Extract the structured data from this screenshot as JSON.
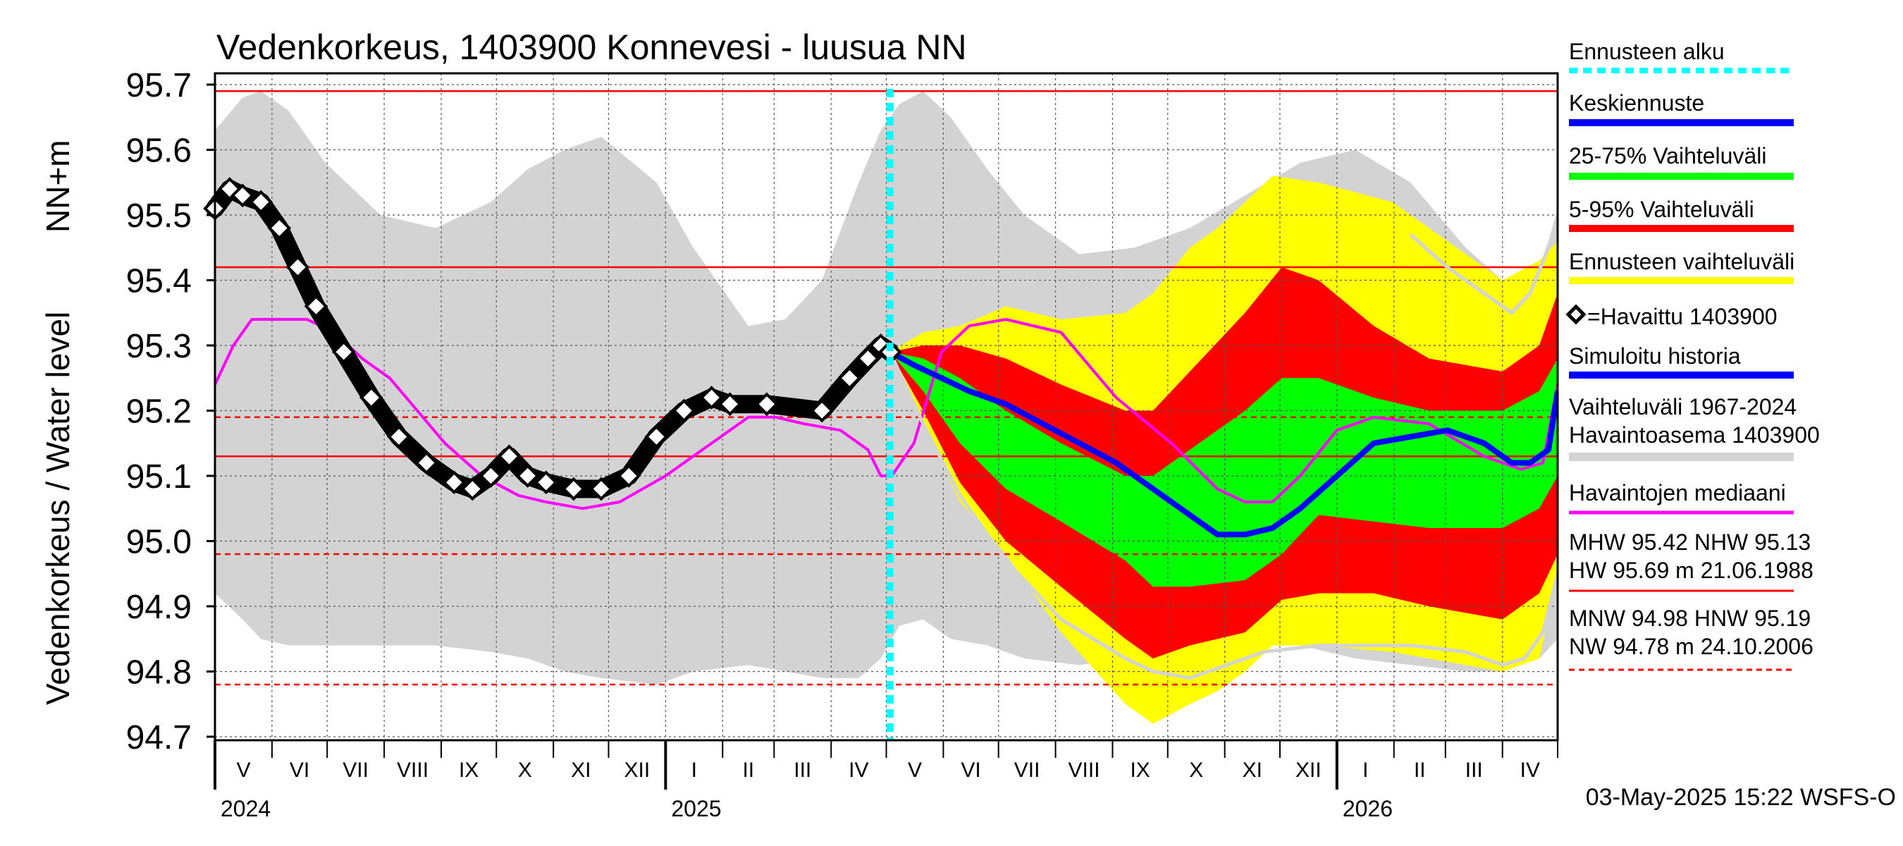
{
  "chart_data": {
    "type": "line",
    "title": "Vedenkorkeus, 1403900 Konnevesi - luusua NN",
    "ylabel": "Vedenkorkeus / Water level",
    "ylabel_unit": "NN+m",
    "ylim": [
      94.7,
      95.7
    ],
    "yticks": [
      "95.7",
      "95.6",
      "95.5",
      "95.4",
      "95.3",
      "95.2",
      "95.1",
      "95.0",
      "94.9",
      "94.8",
      "94.7"
    ],
    "month_labels": [
      "V",
      "VI",
      "VII",
      "VIII",
      "IX",
      "X",
      "XI",
      "XII",
      "I",
      "II",
      "III",
      "IV",
      "V",
      "VI",
      "VII",
      "VIII",
      "IX",
      "X",
      "XI",
      "XII",
      "I",
      "II",
      "III",
      "IV"
    ],
    "year_labels": [
      "2024",
      "2025",
      "2026"
    ],
    "x_start": "2024-05-01",
    "forecast_start": "2025-05-03",
    "reference_lines": [
      {
        "name": "HW",
        "value": 95.69,
        "style": "solid"
      },
      {
        "name": "MHW",
        "value": 95.42,
        "style": "solid"
      },
      {
        "name": "HNW",
        "value": 95.19,
        "style": "dashed"
      },
      {
        "name": "NHW",
        "value": 95.13,
        "style": "solid"
      },
      {
        "name": "MNW",
        "value": 94.98,
        "style": "dashed"
      },
      {
        "name": "NW",
        "value": 94.78,
        "style": "dashed"
      }
    ],
    "series": [
      {
        "name": "Vaihteluväli 1967-2024",
        "kind": "band",
        "color": "#d3d3d3",
        "t": [
          0,
          15,
          25,
          40,
          60,
          90,
          120,
          150,
          170,
          190,
          210,
          240,
          260,
          290,
          310,
          330,
          350,
          362,
          372,
          385,
          400,
          420,
          440,
          470,
          500,
          530,
          560,
          590,
          620,
          650,
          680,
          700,
          720,
          730
        ],
        "lo": [
          94.92,
          94.88,
          94.85,
          94.84,
          94.84,
          94.84,
          94.84,
          94.83,
          94.82,
          94.8,
          94.79,
          94.78,
          94.8,
          94.81,
          94.8,
          94.79,
          94.79,
          94.82,
          94.87,
          94.88,
          94.85,
          94.84,
          94.82,
          94.81,
          94.82,
          94.84,
          94.84,
          94.84,
          94.82,
          94.81,
          94.8,
          94.8,
          94.82,
          94.85
        ],
        "hi": [
          95.63,
          95.68,
          95.69,
          95.66,
          95.58,
          95.5,
          95.48,
          95.52,
          95.57,
          95.6,
          95.62,
          95.55,
          95.45,
          95.33,
          95.34,
          95.4,
          95.55,
          95.63,
          95.67,
          95.69,
          95.65,
          95.57,
          95.5,
          95.44,
          95.45,
          95.48,
          95.53,
          95.58,
          95.6,
          95.55,
          95.45,
          95.4,
          95.42,
          95.5
        ]
      },
      {
        "name": "Ennusteen vaihteluväli",
        "kind": "band",
        "color": "#ffff00",
        "t": [
          367,
          385,
          405,
          430,
          460,
          495,
          510,
          530,
          545,
          560,
          575,
          600,
          640,
          700,
          720,
          730
        ],
        "lo": [
          95.29,
          95.18,
          95.06,
          94.98,
          94.86,
          94.75,
          94.72,
          94.75,
          94.77,
          94.8,
          94.84,
          94.84,
          94.83,
          94.8,
          94.82,
          94.95
        ],
        "hi": [
          95.29,
          95.32,
          95.33,
          95.36,
          95.34,
          95.35,
          95.38,
          95.45,
          95.48,
          95.52,
          95.56,
          95.55,
          95.52,
          95.4,
          95.43,
          95.46
        ]
      },
      {
        "name": "5-95% Vaihteluväli",
        "kind": "band",
        "color": "#ff0000",
        "t": [
          367,
          385,
          405,
          430,
          460,
          495,
          510,
          530,
          560,
          580,
          600,
          630,
          660,
          700,
          720,
          730
        ],
        "lo": [
          95.29,
          95.2,
          95.09,
          95.0,
          94.93,
          94.85,
          94.82,
          94.84,
          94.86,
          94.91,
          94.92,
          94.92,
          94.9,
          94.88,
          94.92,
          94.98
        ],
        "hi": [
          95.29,
          95.3,
          95.3,
          95.28,
          95.24,
          95.2,
          95.2,
          95.26,
          95.35,
          95.42,
          95.4,
          95.33,
          95.28,
          95.26,
          95.3,
          95.38
        ]
      },
      {
        "name": "25-75% Vaihteluväli",
        "kind": "band",
        "color": "#00ff00",
        "t": [
          367,
          385,
          405,
          430,
          460,
          495,
          510,
          530,
          560,
          580,
          600,
          630,
          660,
          700,
          720,
          730
        ],
        "lo": [
          95.29,
          95.23,
          95.15,
          95.08,
          95.03,
          94.97,
          94.93,
          94.93,
          94.94,
          94.98,
          95.04,
          95.03,
          95.02,
          95.02,
          95.05,
          95.1
        ],
        "hi": [
          95.29,
          95.28,
          95.25,
          95.2,
          95.15,
          95.1,
          95.1,
          95.14,
          95.2,
          95.25,
          95.25,
          95.22,
          95.2,
          95.2,
          95.23,
          95.28
        ]
      },
      {
        "name": "Havaintojen mediaani",
        "kind": "line",
        "color": "#ff00ff",
        "t": [
          0,
          10,
          20,
          35,
          50,
          65,
          80,
          95,
          110,
          125,
          145,
          165,
          180,
          200,
          220,
          245,
          270,
          290,
          305,
          320,
          340,
          355,
          362,
          368,
          380,
          395,
          410,
          430,
          460,
          490,
          520,
          545,
          560,
          575,
          590,
          610,
          630,
          660,
          690,
          710,
          722,
          730
        ],
        "v": [
          95.24,
          95.3,
          95.34,
          95.34,
          95.34,
          95.32,
          95.28,
          95.25,
          95.2,
          95.15,
          95.1,
          95.07,
          95.06,
          95.05,
          95.06,
          95.1,
          95.15,
          95.19,
          95.19,
          95.18,
          95.17,
          95.14,
          95.1,
          95.1,
          95.15,
          95.29,
          95.33,
          95.34,
          95.32,
          95.22,
          95.15,
          95.08,
          95.06,
          95.06,
          95.1,
          95.17,
          95.19,
          95.18,
          95.13,
          95.11,
          95.12,
          95.24
        ]
      },
      {
        "name": "Keskiennuste",
        "kind": "line",
        "color": "#0000ff",
        "t": [
          367,
          380,
          395,
          410,
          430,
          450,
          470,
          490,
          510,
          530,
          545,
          560,
          575,
          590,
          610,
          630,
          650,
          670,
          690,
          705,
          715,
          725,
          730
        ],
        "v": [
          95.29,
          95.27,
          95.25,
          95.23,
          95.21,
          95.18,
          95.15,
          95.12,
          95.08,
          95.04,
          95.01,
          95.01,
          95.02,
          95.05,
          95.1,
          95.15,
          95.16,
          95.17,
          95.15,
          95.12,
          95.12,
          95.14,
          95.23
        ]
      },
      {
        "name": "Simuloitu historia",
        "kind": "line",
        "color": "#0000ff",
        "t": [
          0,
          8,
          15,
          25,
          35,
          45,
          55,
          70,
          85,
          100,
          115,
          130,
          140,
          150,
          160,
          170,
          180,
          195,
          210,
          225,
          240,
          255,
          270,
          280,
          300,
          330,
          345,
          355,
          362,
          367
        ],
        "v": [
          95.51,
          95.54,
          95.53,
          95.52,
          95.48,
          95.42,
          95.36,
          95.29,
          95.22,
          95.16,
          95.12,
          95.09,
          95.08,
          95.1,
          95.13,
          95.1,
          95.09,
          95.08,
          95.08,
          95.1,
          95.16,
          95.2,
          95.22,
          95.21,
          95.21,
          95.2,
          95.25,
          95.28,
          95.3,
          95.29
        ]
      },
      {
        "name": "=Havaittu 1403900",
        "kind": "markers",
        "color": "#000000",
        "t": [
          0,
          8,
          15,
          25,
          35,
          45,
          55,
          70,
          85,
          100,
          115,
          130,
          140,
          150,
          160,
          170,
          180,
          195,
          210,
          225,
          240,
          255,
          270,
          280,
          300,
          330,
          345,
          355,
          362,
          367
        ],
        "v": [
          95.51,
          95.54,
          95.53,
          95.52,
          95.48,
          95.42,
          95.36,
          95.29,
          95.22,
          95.16,
          95.12,
          95.09,
          95.08,
          95.1,
          95.13,
          95.1,
          95.09,
          95.08,
          95.08,
          95.1,
          95.16,
          95.2,
          95.22,
          95.21,
          95.21,
          95.2,
          95.25,
          95.28,
          95.3,
          95.29
        ]
      },
      {
        "name": "Vaihteluväli upper forecast trace",
        "kind": "line",
        "color": "#d3d3d3",
        "t": [
          367,
          385,
          405,
          430,
          460,
          495,
          510,
          530,
          550,
          570,
          600,
          650,
          680,
          700,
          712,
          722,
          730
        ],
        "v": [
          95.29,
          95.18,
          95.07,
          94.97,
          94.88,
          94.82,
          94.8,
          94.79,
          94.81,
          94.83,
          94.84,
          94.84,
          94.83,
          94.81,
          94.82,
          94.86,
          94.95
        ]
      },
      {
        "name": "upper historical trace",
        "kind": "line",
        "color": "#d3d3d3",
        "t": [
          650,
          670,
          690,
          705,
          715,
          725,
          730
        ],
        "v": [
          95.47,
          95.42,
          95.38,
          95.35,
          95.38,
          95.45,
          95.5
        ]
      }
    ],
    "legend": [
      {
        "label": "Ennusteen alku",
        "color": "#00ffff",
        "style": "dotted"
      },
      {
        "label": "Keskiennuste",
        "color": "#0000ff",
        "style": "solid"
      },
      {
        "label": "25-75% Vaihteluväli",
        "color": "#00ff00",
        "style": "solid"
      },
      {
        "label": "5-95% Vaihteluväli",
        "color": "#ff0000",
        "style": "solid"
      },
      {
        "label": "Ennusteen vaihteluväli",
        "color": "#ffff00",
        "style": "solid"
      },
      {
        "label": "=Havaittu 1403900",
        "color": "#000000",
        "style": "marker"
      },
      {
        "label": "Simuloitu historia",
        "color": "#0000ff",
        "style": "solid"
      },
      {
        "label": "Vaihteluväli 1967-2024",
        "label2": " Havaintoasema 1403900",
        "color": "#d3d3d3",
        "style": "solid"
      },
      {
        "label": "Havaintojen mediaani",
        "color": "#ff00ff",
        "style": "solid"
      }
    ],
    "stats": {
      "line1": "MHW  95.42 NHW  95.13",
      "line2": "HW  95.69 m 21.06.1988",
      "line3": "MNW  94.98 HNW  95.19",
      "line4": "NW  94.78 m 24.10.2006"
    },
    "timestamp": "03-May-2025 15:22 WSFS-O"
  }
}
